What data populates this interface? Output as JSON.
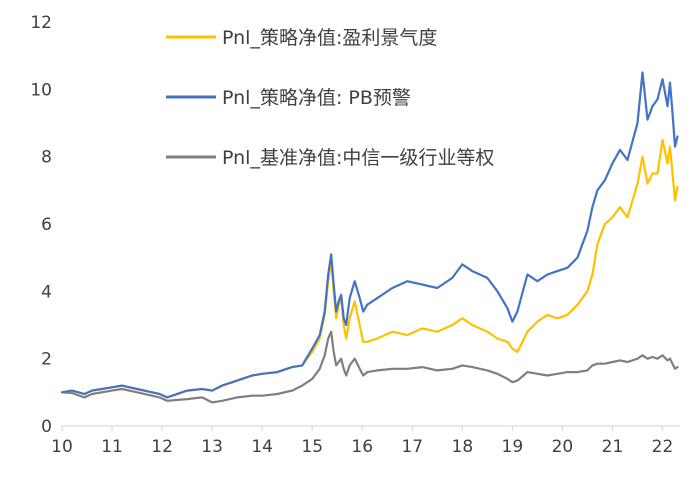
{
  "chart_data": {
    "type": "line",
    "title": "",
    "xlabel": "",
    "ylabel": "",
    "xlim": [
      10,
      22.35
    ],
    "ylim": [
      0,
      12
    ],
    "x_ticks": [
      10,
      11,
      12,
      13,
      14,
      15,
      16,
      17,
      18,
      19,
      20,
      21,
      22
    ],
    "y_ticks": [
      0,
      2,
      4,
      6,
      8,
      10,
      12
    ],
    "grid": false,
    "legend_position": "top-center",
    "series": [
      {
        "name": "Pnl_策略净值:盈利景气度",
        "color": "#FFC000",
        "x": [
          10.0,
          10.2,
          10.45,
          10.6,
          10.8,
          11.0,
          11.2,
          11.5,
          11.8,
          11.95,
          12.1,
          12.5,
          12.8,
          13.0,
          13.2,
          13.5,
          13.8,
          14.0,
          14.3,
          14.6,
          14.8,
          15.0,
          15.15,
          15.25,
          15.32,
          15.38,
          15.43,
          15.48,
          15.53,
          15.58,
          15.63,
          15.68,
          15.75,
          15.85,
          15.95,
          16.02,
          16.1,
          16.3,
          16.6,
          16.9,
          17.2,
          17.5,
          17.8,
          18.0,
          18.2,
          18.5,
          18.7,
          18.9,
          19.0,
          19.1,
          19.3,
          19.5,
          19.7,
          19.9,
          20.1,
          20.3,
          20.5,
          20.6,
          20.7,
          20.85,
          21.0,
          21.15,
          21.3,
          21.5,
          21.6,
          21.7,
          21.8,
          21.9,
          22.0,
          22.1,
          22.15,
          22.2,
          22.25,
          22.3
        ],
        "values": [
          1.0,
          1.05,
          0.95,
          1.05,
          1.1,
          1.15,
          1.2,
          1.1,
          1.0,
          0.95,
          0.85,
          1.05,
          1.1,
          1.05,
          1.2,
          1.35,
          1.5,
          1.55,
          1.6,
          1.75,
          1.8,
          2.2,
          2.6,
          3.3,
          4.3,
          4.9,
          4.0,
          3.2,
          3.6,
          3.8,
          3.0,
          2.6,
          3.2,
          3.7,
          3.0,
          2.5,
          2.5,
          2.6,
          2.8,
          2.7,
          2.9,
          2.8,
          3.0,
          3.2,
          3.0,
          2.8,
          2.6,
          2.5,
          2.3,
          2.2,
          2.8,
          3.1,
          3.3,
          3.2,
          3.3,
          3.6,
          4.0,
          4.5,
          5.4,
          6.0,
          6.2,
          6.5,
          6.2,
          7.2,
          8.0,
          7.2,
          7.5,
          7.5,
          8.5,
          7.8,
          8.3,
          7.5,
          6.7,
          7.1
        ]
      },
      {
        "name": "Pnl_策略净值: PB预警",
        "color": "#4472C4",
        "x": [
          10.0,
          10.2,
          10.45,
          10.6,
          10.8,
          11.0,
          11.2,
          11.5,
          11.8,
          11.95,
          12.1,
          12.5,
          12.8,
          13.0,
          13.2,
          13.5,
          13.8,
          14.0,
          14.3,
          14.6,
          14.8,
          15.0,
          15.15,
          15.25,
          15.32,
          15.38,
          15.43,
          15.48,
          15.53,
          15.58,
          15.63,
          15.68,
          15.75,
          15.85,
          15.95,
          16.02,
          16.1,
          16.3,
          16.6,
          16.9,
          17.2,
          17.5,
          17.8,
          18.0,
          18.2,
          18.5,
          18.7,
          18.9,
          19.0,
          19.1,
          19.3,
          19.5,
          19.7,
          19.9,
          20.1,
          20.3,
          20.5,
          20.6,
          20.7,
          20.85,
          21.0,
          21.15,
          21.3,
          21.5,
          21.6,
          21.7,
          21.8,
          21.9,
          22.0,
          22.1,
          22.15,
          22.2,
          22.25,
          22.3
        ],
        "values": [
          1.0,
          1.05,
          0.95,
          1.05,
          1.1,
          1.15,
          1.2,
          1.1,
          1.0,
          0.95,
          0.85,
          1.05,
          1.1,
          1.05,
          1.2,
          1.35,
          1.5,
          1.55,
          1.6,
          1.75,
          1.8,
          2.3,
          2.7,
          3.4,
          4.5,
          5.1,
          4.2,
          3.4,
          3.7,
          3.9,
          3.2,
          3.0,
          3.8,
          4.3,
          3.8,
          3.4,
          3.6,
          3.8,
          4.1,
          4.3,
          4.2,
          4.1,
          4.4,
          4.8,
          4.6,
          4.4,
          4.0,
          3.5,
          3.1,
          3.4,
          4.5,
          4.3,
          4.5,
          4.6,
          4.7,
          5.0,
          5.8,
          6.5,
          7.0,
          7.3,
          7.8,
          8.2,
          7.9,
          9.0,
          10.5,
          9.1,
          9.5,
          9.7,
          10.3,
          9.5,
          10.2,
          9.3,
          8.3,
          8.6
        ]
      },
      {
        "name": "Pnl_基准净值:中信一级行业等权",
        "color": "#7F7F7F",
        "x": [
          10.0,
          10.2,
          10.45,
          10.6,
          10.8,
          11.0,
          11.2,
          11.5,
          11.8,
          11.95,
          12.1,
          12.5,
          12.8,
          13.0,
          13.2,
          13.5,
          13.8,
          14.0,
          14.3,
          14.6,
          14.8,
          15.0,
          15.15,
          15.25,
          15.32,
          15.38,
          15.43,
          15.48,
          15.53,
          15.58,
          15.63,
          15.68,
          15.75,
          15.85,
          15.95,
          16.02,
          16.1,
          16.3,
          16.6,
          16.9,
          17.2,
          17.5,
          17.8,
          18.0,
          18.2,
          18.5,
          18.7,
          18.9,
          19.0,
          19.1,
          19.3,
          19.5,
          19.7,
          19.9,
          20.1,
          20.3,
          20.5,
          20.6,
          20.7,
          20.85,
          21.0,
          21.15,
          21.3,
          21.5,
          21.6,
          21.7,
          21.8,
          21.9,
          22.0,
          22.1,
          22.15,
          22.2,
          22.25,
          22.3
        ],
        "values": [
          1.0,
          0.98,
          0.85,
          0.95,
          1.0,
          1.05,
          1.1,
          1.0,
          0.9,
          0.85,
          0.75,
          0.8,
          0.85,
          0.7,
          0.75,
          0.85,
          0.9,
          0.9,
          0.95,
          1.05,
          1.2,
          1.4,
          1.7,
          2.1,
          2.6,
          2.8,
          2.2,
          1.8,
          1.9,
          2.0,
          1.7,
          1.5,
          1.8,
          2.0,
          1.7,
          1.5,
          1.6,
          1.65,
          1.7,
          1.7,
          1.75,
          1.65,
          1.7,
          1.8,
          1.75,
          1.65,
          1.55,
          1.4,
          1.3,
          1.35,
          1.6,
          1.55,
          1.5,
          1.55,
          1.6,
          1.6,
          1.65,
          1.8,
          1.85,
          1.85,
          1.9,
          1.95,
          1.9,
          2.0,
          2.1,
          2.0,
          2.05,
          2.0,
          2.1,
          1.95,
          2.0,
          1.85,
          1.7,
          1.75
        ]
      }
    ]
  }
}
